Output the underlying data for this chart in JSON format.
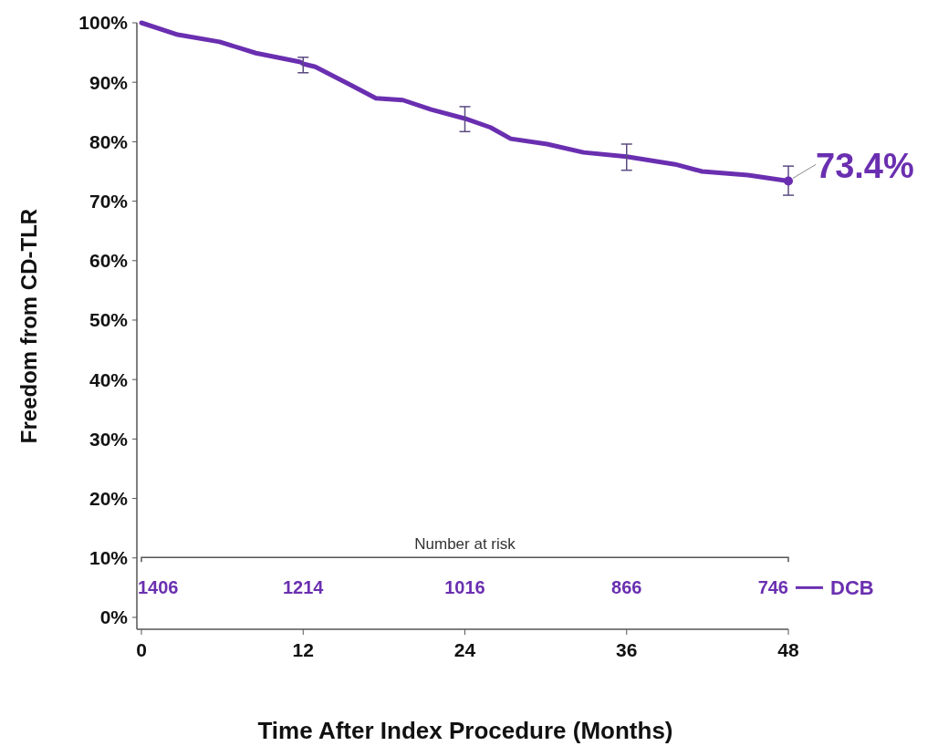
{
  "chart_data": {
    "type": "line",
    "xlabel": "Time After Index Procedure (Months)",
    "ylabel": "Freedom from CD-TLR",
    "xlim": [
      0,
      48
    ],
    "xticks": [
      0,
      12,
      24,
      36,
      48
    ],
    "ylim": [
      -2,
      100
    ],
    "yticks": [
      {
        "value": 0,
        "label": "0%"
      },
      {
        "value": 10,
        "label": "10%"
      },
      {
        "value": 20,
        "label": "20%"
      },
      {
        "value": 30,
        "label": "30%"
      },
      {
        "value": 40,
        "label": "40%"
      },
      {
        "value": 50,
        "label": "50%"
      },
      {
        "value": 60,
        "label": "60%"
      },
      {
        "value": 70,
        "label": "70%"
      },
      {
        "value": 80,
        "label": "80%"
      },
      {
        "value": 90,
        "label": "90%"
      },
      {
        "value": 100,
        "label": "100%"
      }
    ],
    "grid": false,
    "legend": "bottom right",
    "marker": "none",
    "line_style": "solid",
    "series": [
      {
        "name": "DCB",
        "color": "#6a2fb0",
        "x": [
          0,
          2.7,
          5.8,
          8.5,
          11.8,
          12,
          12.9,
          15.4,
          17.4,
          19.4,
          21.5,
          24,
          25.9,
          27.4,
          30.1,
          32.8,
          36,
          39.6,
          41.6,
          45,
          48
        ],
        "values": [
          100,
          98,
          96.8,
          94.9,
          93.4,
          93.1,
          92.6,
          89.7,
          87.3,
          87,
          85.4,
          83.9,
          82.4,
          80.5,
          79.6,
          78.2,
          77.5,
          76.2,
          75,
          74.4,
          73.4
        ],
        "errors": [
          null,
          null,
          null,
          null,
          null,
          [
            91.6,
            94.2
          ],
          null,
          null,
          null,
          null,
          null,
          [
            81.7,
            85.9
          ],
          null,
          null,
          null,
          null,
          [
            75.2,
            79.6
          ],
          null,
          null,
          null,
          [
            71,
            75.9
          ]
        ]
      }
    ],
    "annotations": [
      {
        "text": "73.4%",
        "x": 48,
        "y": 73.4
      },
      "Number at risk",
      "1406",
      "1214",
      "1016",
      "866",
      "746"
    ]
  }
}
